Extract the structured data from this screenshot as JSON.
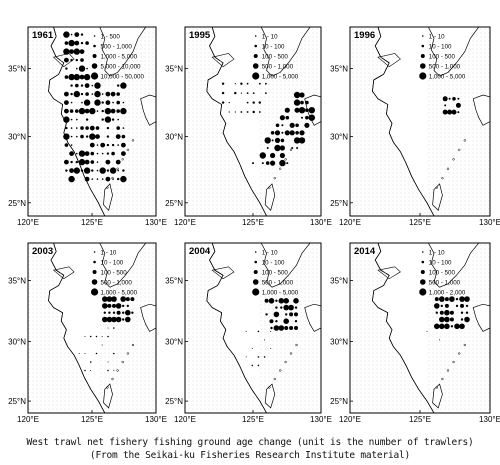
{
  "caption": {
    "line1": "West trawl net fishery fishing ground age change (unit is the number of trawlers)",
    "line2": "(From the Seikai-ku Fisheries Research Institute material)"
  },
  "axes": {
    "lat_ticks": [
      "35°N",
      "30°N",
      "25°N"
    ],
    "lon_ticks": [
      "120°E",
      "125°E",
      "130°E"
    ]
  },
  "colors": {
    "land": "#ffffff",
    "sea_stipple": "#c8c8c8",
    "marker": "#000000",
    "coast": "#000000"
  },
  "panels": [
    {
      "year": "1961",
      "legend": [
        "1 - 500",
        "500 - 1,000",
        "1,000 - 5,000",
        "5,000 - 10,000",
        "10,000 - 50,000"
      ],
      "density": "very high, spread over East China Sea and Yellow Sea"
    },
    {
      "year": "1995",
      "legend": [
        "1 - 10",
        "10 - 100",
        "100 - 500",
        "500 - 1,000",
        "1,000 - 5,000"
      ],
      "density": "high, concentrated along continental shelf edge"
    },
    {
      "year": "1996",
      "legend": [
        "1 - 10",
        "10 - 100",
        "100 - 500",
        "500 - 1,000",
        "1,000 - 5,000"
      ],
      "density": "low, near Korea/Kyushu"
    },
    {
      "year": "2003",
      "legend": [
        "1 - 10",
        "10 - 100",
        "100 - 500",
        "500 - 1,000",
        "1,000 - 5,000"
      ],
      "density": "low, near Korea/Kyushu"
    },
    {
      "year": "2004",
      "legend": [
        "1 - 10",
        "10 - 100",
        "100 - 500",
        "500 - 1,000",
        "1,000 - 5,000"
      ],
      "density": "low, near Korea/Kyushu"
    },
    {
      "year": "2014",
      "legend": [
        "1 - 10",
        "10 - 100",
        "100 - 500",
        "500 - 1,000",
        "1,000 - 2,000"
      ],
      "density": "low, near Korea/Kyushu"
    }
  ]
}
